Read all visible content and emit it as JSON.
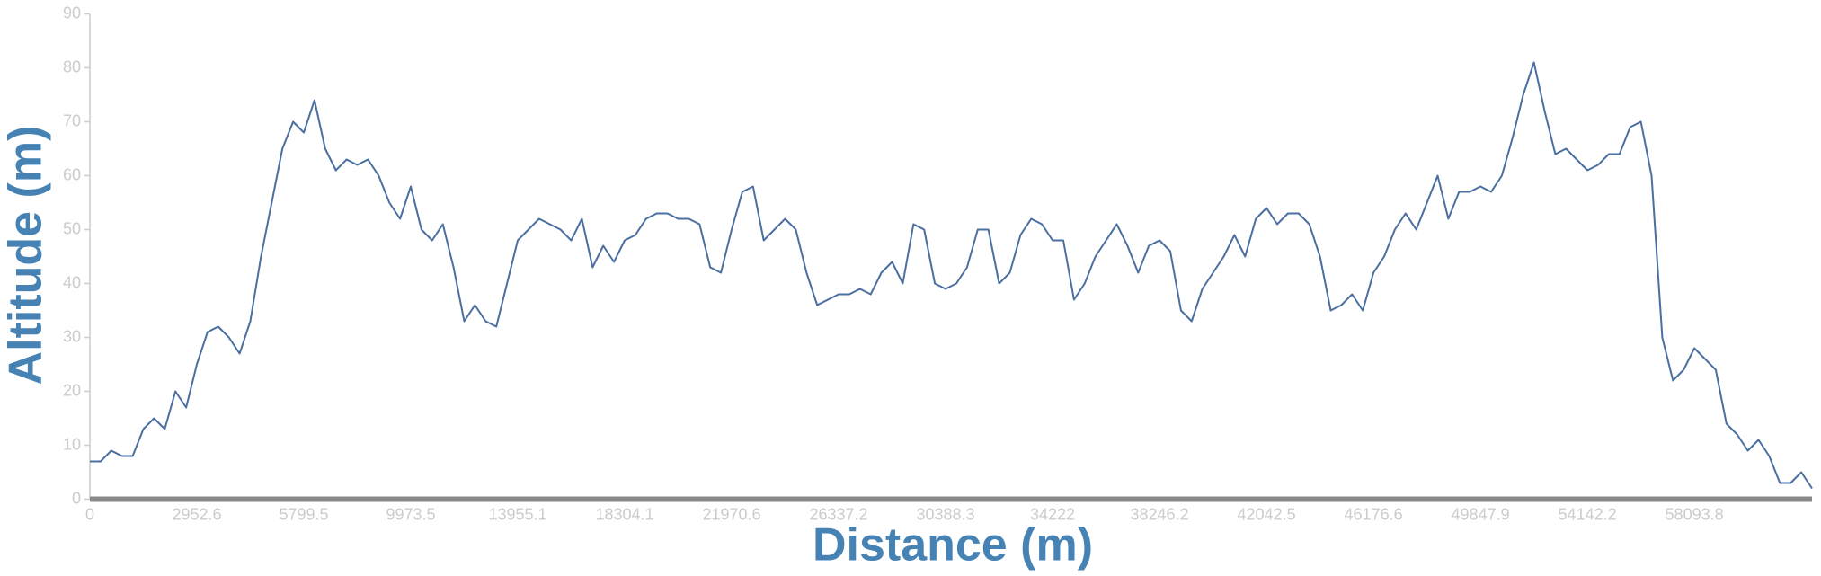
{
  "chart_data": {
    "type": "line",
    "x_label": "Distance (m)",
    "y_label": "Altitude (m)",
    "categories": [
      "0",
      null,
      null,
      null,
      null,
      null,
      null,
      null,
      null,
      null,
      "2952.6",
      null,
      null,
      null,
      null,
      null,
      null,
      null,
      null,
      null,
      "5799.5",
      null,
      null,
      null,
      null,
      null,
      null,
      null,
      null,
      null,
      "9973.5",
      null,
      null,
      null,
      null,
      null,
      null,
      null,
      null,
      null,
      "13955.1",
      null,
      null,
      null,
      null,
      null,
      null,
      null,
      null,
      null,
      "18304.1",
      null,
      null,
      null,
      null,
      null,
      null,
      null,
      null,
      null,
      "21970.6",
      null,
      null,
      null,
      null,
      null,
      null,
      null,
      null,
      null,
      "26337.2",
      null,
      null,
      null,
      null,
      null,
      null,
      null,
      null,
      null,
      "30388.3",
      null,
      null,
      null,
      null,
      null,
      null,
      null,
      null,
      null,
      "34222",
      null,
      null,
      null,
      null,
      null,
      null,
      null,
      null,
      null,
      "38246.2",
      null,
      null,
      null,
      null,
      null,
      null,
      null,
      null,
      null,
      "42042.5",
      null,
      null,
      null,
      null,
      null,
      null,
      null,
      null,
      null,
      "46176.6",
      null,
      null,
      null,
      null,
      null,
      null,
      null,
      null,
      null,
      "49847.9",
      null,
      null,
      null,
      null,
      null,
      null,
      null,
      null,
      null,
      "54142.2",
      null,
      null,
      null,
      null,
      null,
      null,
      null,
      null,
      null,
      "58093.8",
      null,
      null,
      null,
      null,
      null,
      null,
      null,
      null,
      null,
      null,
      null
    ],
    "series": [
      {
        "color": "#4a6fa0",
        "values": [
          7,
          7,
          9,
          8,
          8,
          13,
          15,
          13,
          20,
          17,
          25,
          31,
          32,
          30,
          27,
          33,
          45,
          55,
          65,
          70,
          68,
          74,
          65,
          61,
          63,
          62,
          63,
          60,
          55,
          52,
          58,
          50,
          48,
          51,
          43,
          33,
          36,
          33,
          32,
          40,
          48,
          50,
          52,
          51,
          50,
          48,
          52,
          43,
          47,
          44,
          48,
          49,
          52,
          53,
          53,
          52,
          52,
          51,
          43,
          42,
          50,
          57,
          58,
          48,
          50,
          52,
          50,
          42,
          36,
          37,
          38,
          38,
          39,
          38,
          42,
          44,
          40,
          51,
          50,
          40,
          39,
          40,
          43,
          50,
          50,
          40,
          42,
          49,
          52,
          51,
          48,
          48,
          37,
          40,
          45,
          48,
          51,
          47,
          42,
          47,
          48,
          46,
          35,
          33,
          39,
          42,
          45,
          49,
          45,
          52,
          54,
          51,
          53,
          53,
          51,
          45,
          35,
          36,
          38,
          35,
          42,
          45,
          50,
          53,
          50,
          55,
          60,
          52,
          57,
          57,
          58,
          57,
          60,
          67,
          75,
          81,
          72,
          64,
          65,
          63,
          61,
          62,
          64,
          64,
          69,
          70,
          60,
          30,
          22,
          24,
          28,
          26,
          24,
          14,
          12,
          9,
          11,
          8,
          3,
          3,
          5,
          2
        ]
      }
    ],
    "ylim": [
      0,
      90
    ],
    "yticks": [
      0,
      10,
      20,
      30,
      40,
      50,
      60,
      70,
      80,
      90
    ]
  }
}
